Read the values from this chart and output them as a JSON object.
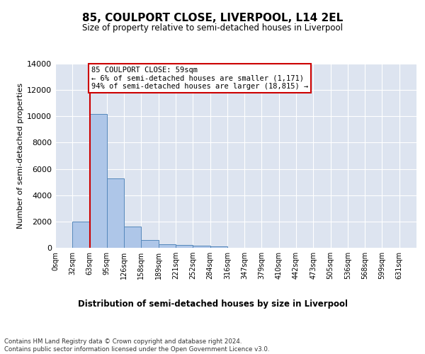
{
  "title": "85, COULPORT CLOSE, LIVERPOOL, L14 2EL",
  "subtitle": "Size of property relative to semi-detached houses in Liverpool",
  "xlabel": "Distribution of semi-detached houses by size in Liverpool",
  "ylabel": "Number of semi-detached properties",
  "bin_labels": [
    "0sqm",
    "32sqm",
    "63sqm",
    "95sqm",
    "126sqm",
    "158sqm",
    "189sqm",
    "221sqm",
    "252sqm",
    "284sqm",
    "316sqm",
    "347sqm",
    "379sqm",
    "410sqm",
    "442sqm",
    "473sqm",
    "505sqm",
    "536sqm",
    "568sqm",
    "599sqm",
    "631sqm"
  ],
  "bar_values": [
    0,
    2000,
    10200,
    5250,
    1600,
    600,
    270,
    190,
    160,
    130,
    0,
    0,
    0,
    0,
    0,
    0,
    0,
    0,
    0,
    0,
    0
  ],
  "bar_color": "#aec6e8",
  "bar_edge_color": "#5588bb",
  "vline_x_index": 2.0,
  "annotation_text_line1": "85 COULPORT CLOSE: 59sqm",
  "annotation_text_line2": "← 6% of semi-detached houses are smaller (1,171)",
  "annotation_text_line3": "94% of semi-detached houses are larger (18,815) →",
  "annotation_box_color": "#ffffff",
  "annotation_box_edge": "#cc0000",
  "vline_color": "#cc0000",
  "ylim": [
    0,
    14000
  ],
  "background_color": "#dde4f0",
  "footer_text": "Contains HM Land Registry data © Crown copyright and database right 2024.\nContains public sector information licensed under the Open Government Licence v3.0."
}
